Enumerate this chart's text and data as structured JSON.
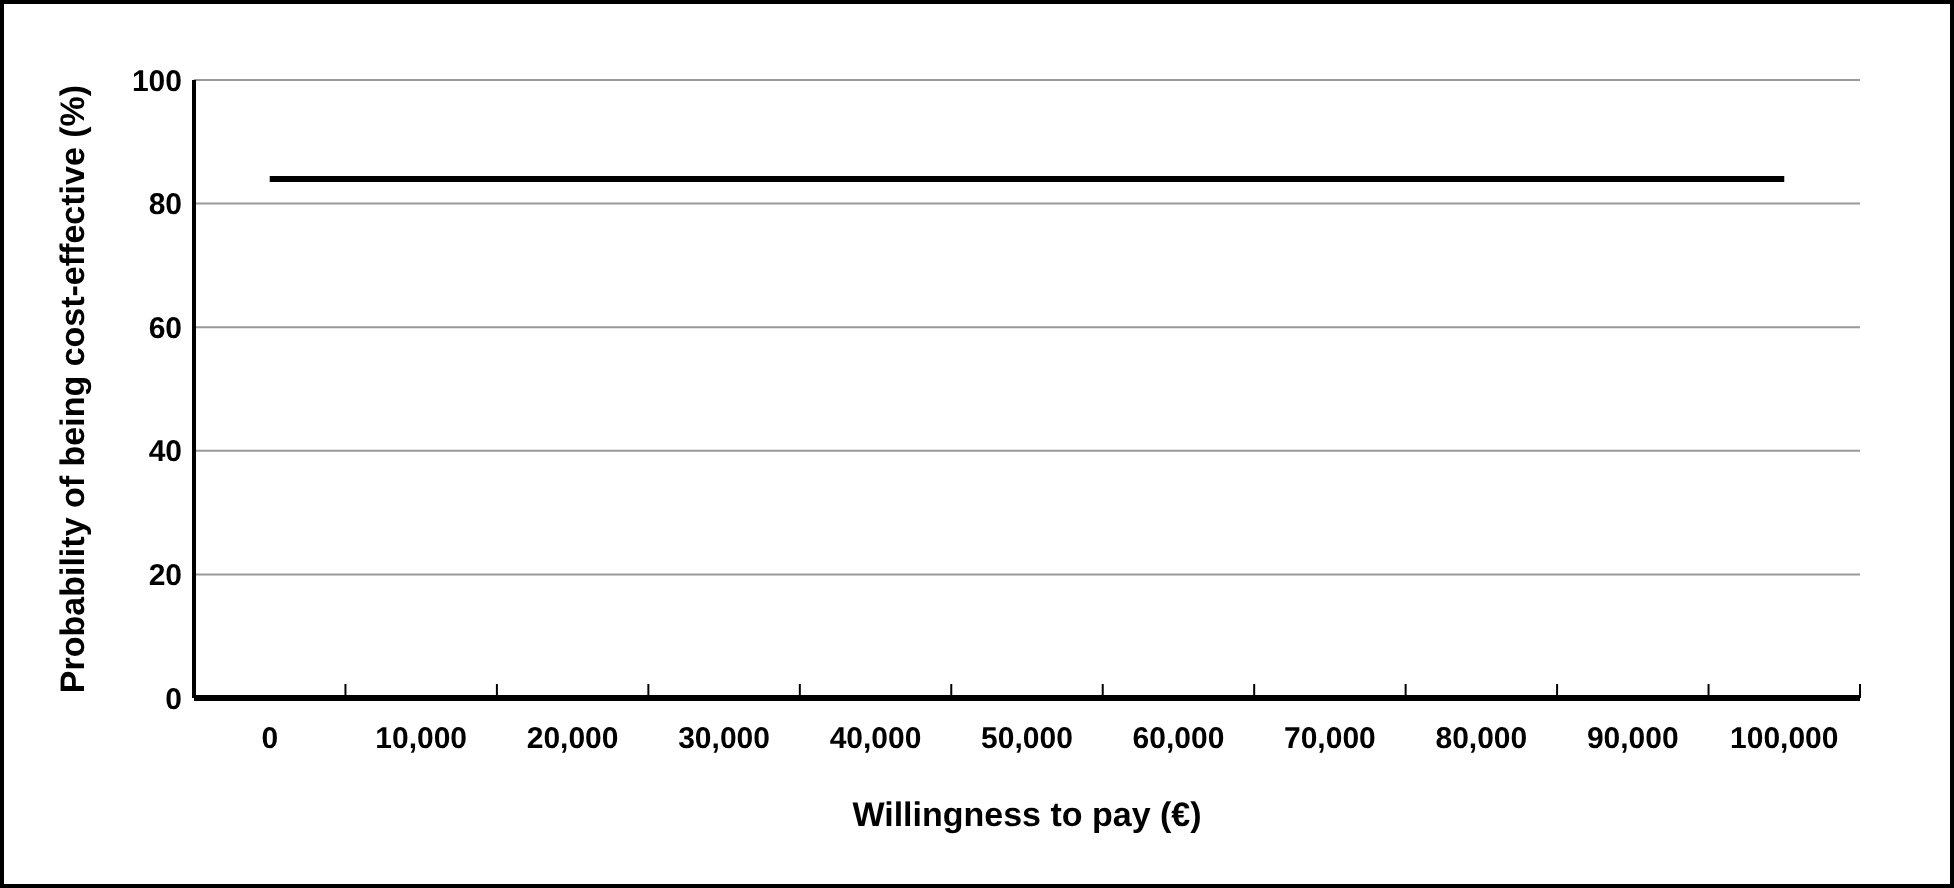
{
  "chart_data": {
    "type": "line",
    "xlabel": "Willingness to pay (€)",
    "ylabel": "Probability of being cost-effective (%)",
    "categories": [
      "0",
      "10,000",
      "20,000",
      "30,000",
      "40,000",
      "50,000",
      "60,000",
      "70,000",
      "80,000",
      "90,000",
      "100,000"
    ],
    "series": [
      {
        "color": "#000000",
        "values": [
          84,
          84,
          84,
          84,
          84,
          84,
          84,
          84,
          84,
          84,
          84
        ]
      }
    ],
    "ylim": [
      0,
      100
    ],
    "yticks": [
      0,
      20,
      40,
      60,
      80,
      100
    ],
    "grid": "y",
    "marker": "none",
    "line_style": "solid"
  }
}
